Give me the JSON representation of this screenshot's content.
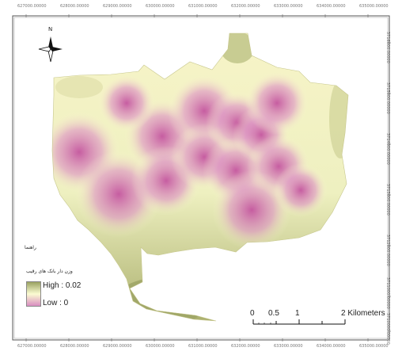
{
  "map": {
    "north_label": "N",
    "layer_title": "راهنما",
    "legend_heading": "وزن دار بانک های رقیب",
    "legend_high": "High : 0.02",
    "legend_low": "Low : 0",
    "legend_colors": {
      "high": "#9aa261",
      "mid": "#fbfcd2",
      "low": "#d98dc1"
    },
    "scale_labels": [
      "0",
      "0.5",
      "1",
      "2 Kilometers"
    ],
    "top_ticks": [
      "627000.00000",
      "628000.00000",
      "629000.00000",
      "630000.00000",
      "631000.00000",
      "632000.00000",
      "633000.00000",
      "634000.00000",
      "635000.00000"
    ],
    "bottom_ticks": [
      "627000.00000",
      "628000.00000",
      "629000.00000",
      "630000.00000",
      "631000.00000",
      "632000.00000",
      "633000.00000",
      "634000.00000",
      "635000.00000"
    ],
    "right_ticks": [
      "3716000.00000",
      "3715000.00000",
      "3714000.00000",
      "3713000.00000",
      "3712000.00000",
      "3711000.00000",
      "3710000.00000"
    ]
  }
}
